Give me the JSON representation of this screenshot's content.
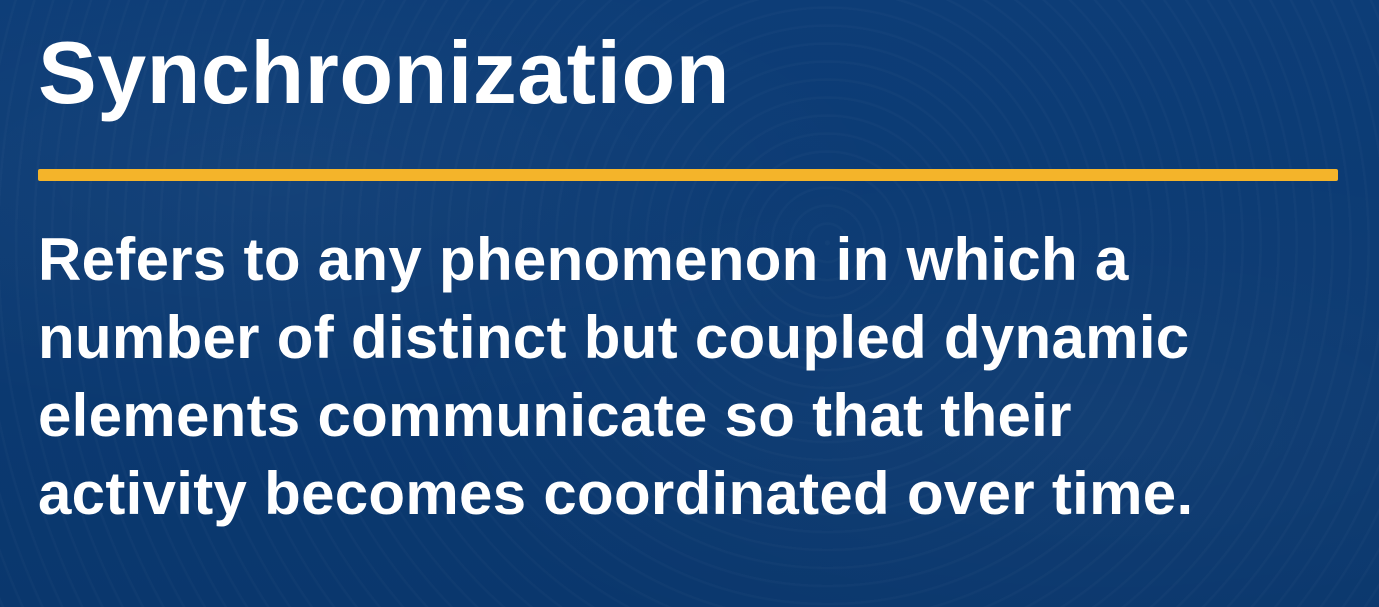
{
  "slide": {
    "title": "Synchronization",
    "body_lines": [
      "Refers to any phenomenon in which a",
      "number of distinct but coupled dynamic",
      "elements communicate so that their",
      "activity becomes coordinated over time."
    ],
    "colors": {
      "background": "#0b3a72",
      "divider": "#f4b42a",
      "text": "#ffffff"
    }
  }
}
